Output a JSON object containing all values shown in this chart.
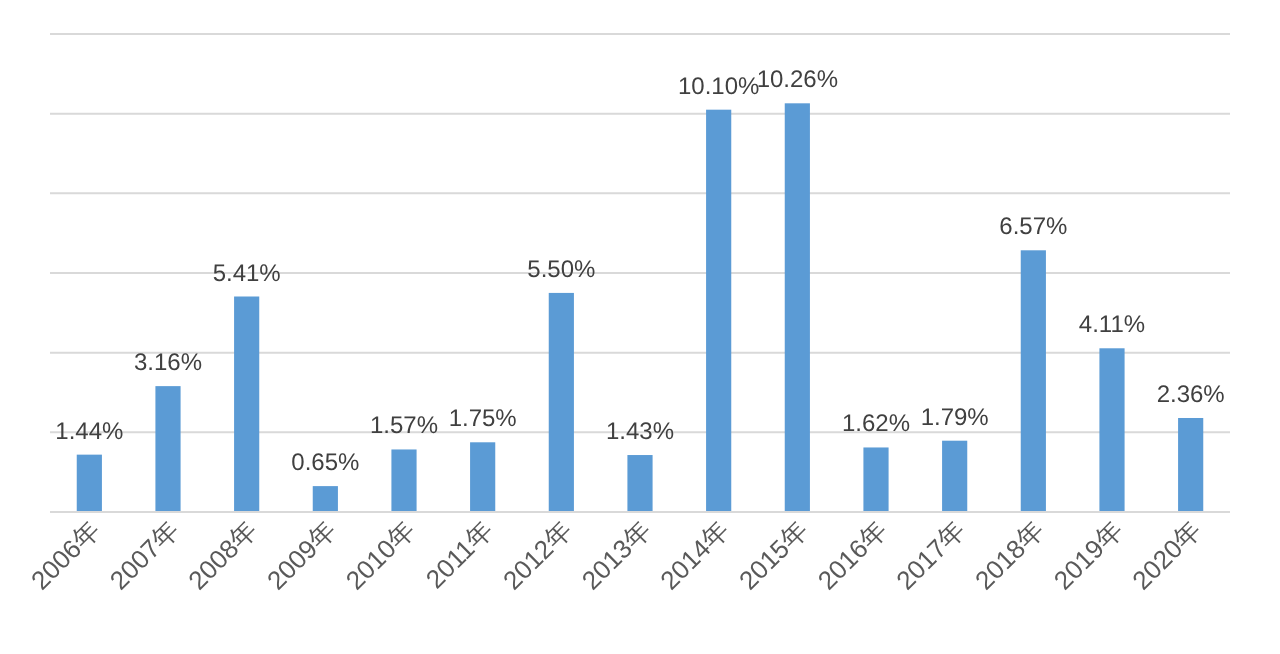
{
  "chart_data": {
    "type": "bar",
    "categories": [
      "2006年",
      "2007年",
      "2008年",
      "2009年",
      "2010年",
      "2011年",
      "2012年",
      "2013年",
      "2014年",
      "2015年",
      "2016年",
      "2017年",
      "2018年",
      "2019年",
      "2020年"
    ],
    "values": [
      1.44,
      3.16,
      5.41,
      0.65,
      1.57,
      1.75,
      5.5,
      1.43,
      10.1,
      10.26,
      1.62,
      1.79,
      6.57,
      4.11,
      2.36
    ],
    "value_labels": [
      "1.44%",
      "3.16%",
      "5.41%",
      "0.65%",
      "1.57%",
      "1.75%",
      "5.50%",
      "1.43%",
      "10.10%",
      "10.26%",
      "1.62%",
      "1.79%",
      "6.57%",
      "4.11%",
      "2.36%"
    ],
    "color": "#5b9bd5",
    "ylim": [
      0,
      12
    ],
    "yticks": [
      {
        "value": 0,
        "label": null
      },
      {
        "value": 2,
        "label": null
      },
      {
        "value": 4,
        "label": null
      },
      {
        "value": 6,
        "label": null
      },
      {
        "value": 8,
        "label": null
      },
      {
        "value": 10,
        "label": null
      },
      {
        "value": 12,
        "label": null
      }
    ],
    "tick_labels": "x",
    "grid": "y"
  }
}
